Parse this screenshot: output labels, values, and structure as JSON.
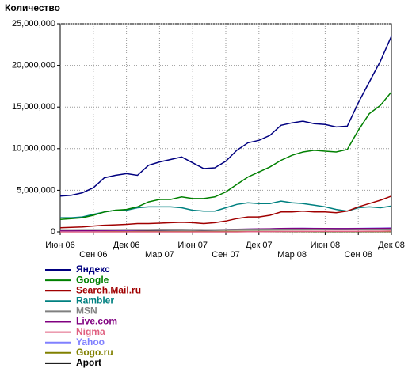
{
  "chart_data": {
    "type": "line",
    "y_label": "Количество",
    "categories": [
      "Июн 06",
      null,
      null,
      "Сен 06",
      null,
      null,
      "Дек 06",
      null,
      null,
      "Мар 07",
      null,
      null,
      "Июн 07",
      null,
      null,
      "Сен 07",
      null,
      null,
      "Дек 07",
      null,
      null,
      "Мар 08",
      null,
      null,
      "Июн 08",
      null,
      null,
      "Сен 08",
      null,
      null,
      "Дек 08"
    ],
    "ylim": [
      0,
      25000000
    ],
    "yticks": [
      0,
      {
        "value": 5000000,
        "label": "5,000,000"
      },
      {
        "value": 10000000,
        "label": "10,000,000"
      },
      {
        "value": 15000000,
        "label": "15,000,000"
      },
      {
        "value": 20000000,
        "label": "20,000,000"
      },
      {
        "value": 25000000,
        "label": "25,000,000"
      }
    ],
    "grid": true,
    "series": [
      {
        "name": "Яндекс",
        "color": "#000080",
        "values": [
          4300000,
          4400000,
          4700000,
          5300000,
          6500000,
          6800000,
          7000000,
          6800000,
          8000000,
          8400000,
          8700000,
          9000000,
          8300000,
          7600000,
          7700000,
          8500000,
          9800000,
          10700000,
          11000000,
          11600000,
          12800000,
          13100000,
          13300000,
          13000000,
          12900000,
          12600000,
          12700000,
          15500000,
          18000000,
          20500000,
          23500000
        ]
      },
      {
        "name": "Google",
        "color": "#008000",
        "values": [
          1500000,
          1600000,
          1700000,
          2000000,
          2400000,
          2600000,
          2700000,
          3000000,
          3600000,
          3900000,
          3900000,
          4200000,
          4000000,
          4000000,
          4200000,
          4800000,
          5700000,
          6600000,
          7200000,
          7800000,
          8600000,
          9200000,
          9600000,
          9800000,
          9700000,
          9600000,
          9900000,
          12200000,
          14200000,
          15200000,
          16800000
        ]
      },
      {
        "name": "Search.Mail.ru",
        "color": "#a00000",
        "values": [
          500000,
          550000,
          600000,
          700000,
          800000,
          850000,
          900000,
          1000000,
          1000000,
          1050000,
          1100000,
          1150000,
          1100000,
          1000000,
          1100000,
          1300000,
          1600000,
          1800000,
          1800000,
          2000000,
          2400000,
          2400000,
          2500000,
          2400000,
          2400000,
          2300000,
          2500000,
          3000000,
          3400000,
          3800000,
          4300000
        ]
      },
      {
        "name": "Rambler",
        "color": "#008080",
        "values": [
          1700000,
          1700000,
          1800000,
          2100000,
          2400000,
          2600000,
          2600000,
          2900000,
          3000000,
          3000000,
          3000000,
          2900000,
          2600000,
          2500000,
          2500000,
          2900000,
          3300000,
          3500000,
          3400000,
          3400000,
          3700000,
          3500000,
          3400000,
          3200000,
          3000000,
          2700000,
          2500000,
          2900000,
          3000000,
          2900000,
          3100000
        ]
      },
      {
        "name": "MSN",
        "color": "#808080",
        "values": [
          250000,
          250000,
          260000,
          260000,
          270000,
          270000,
          280000,
          280000,
          280000,
          290000,
          290000,
          290000,
          280000,
          270000,
          270000,
          280000,
          290000,
          300000,
          300000,
          300000,
          310000,
          310000,
          300000,
          300000,
          290000,
          280000,
          280000,
          290000,
          300000,
          300000,
          310000
        ]
      },
      {
        "name": "Live.com",
        "color": "#800080",
        "values": [
          150000,
          150000,
          160000,
          170000,
          180000,
          190000,
          200000,
          220000,
          240000,
          250000,
          260000,
          270000,
          260000,
          250000,
          260000,
          280000,
          300000,
          330000,
          350000,
          370000,
          400000,
          420000,
          420000,
          410000,
          400000,
          390000,
          390000,
          400000,
          410000,
          420000,
          430000
        ]
      },
      {
        "name": "Nigma",
        "color": "#e06080",
        "values": [
          0,
          0,
          0,
          0,
          0,
          0,
          0,
          0,
          0,
          0,
          0,
          0,
          0,
          0,
          0,
          0,
          0,
          20000,
          30000,
          40000,
          50000,
          60000,
          60000,
          70000,
          70000,
          70000,
          80000,
          80000,
          90000,
          90000,
          100000
        ]
      },
      {
        "name": "Yahoo",
        "color": "#8080ff",
        "values": [
          100000,
          110000,
          120000,
          130000,
          150000,
          160000,
          170000,
          190000,
          210000,
          220000,
          230000,
          240000,
          240000,
          230000,
          240000,
          260000,
          290000,
          320000,
          340000,
          360000,
          400000,
          420000,
          430000,
          420000,
          410000,
          400000,
          400000,
          420000,
          440000,
          460000,
          480000
        ]
      },
      {
        "name": "Gogo.ru",
        "color": "#808000",
        "values": [
          50000,
          50000,
          50000,
          50000,
          50000,
          50000,
          50000,
          50000,
          50000,
          50000,
          50000,
          50000,
          50000,
          50000,
          50000,
          50000,
          50000,
          50000,
          50000,
          50000,
          50000,
          50000,
          50000,
          50000,
          50000,
          50000,
          50000,
          50000,
          50000,
          50000,
          50000
        ]
      },
      {
        "name": "Aport",
        "color": "#000000",
        "values": [
          80000,
          80000,
          80000,
          80000,
          80000,
          80000,
          80000,
          80000,
          70000,
          70000,
          70000,
          70000,
          70000,
          70000,
          70000,
          70000,
          60000,
          60000,
          60000,
          60000,
          60000,
          60000,
          60000,
          60000,
          50000,
          50000,
          50000,
          50000,
          50000,
          50000,
          50000
        ]
      }
    ]
  }
}
